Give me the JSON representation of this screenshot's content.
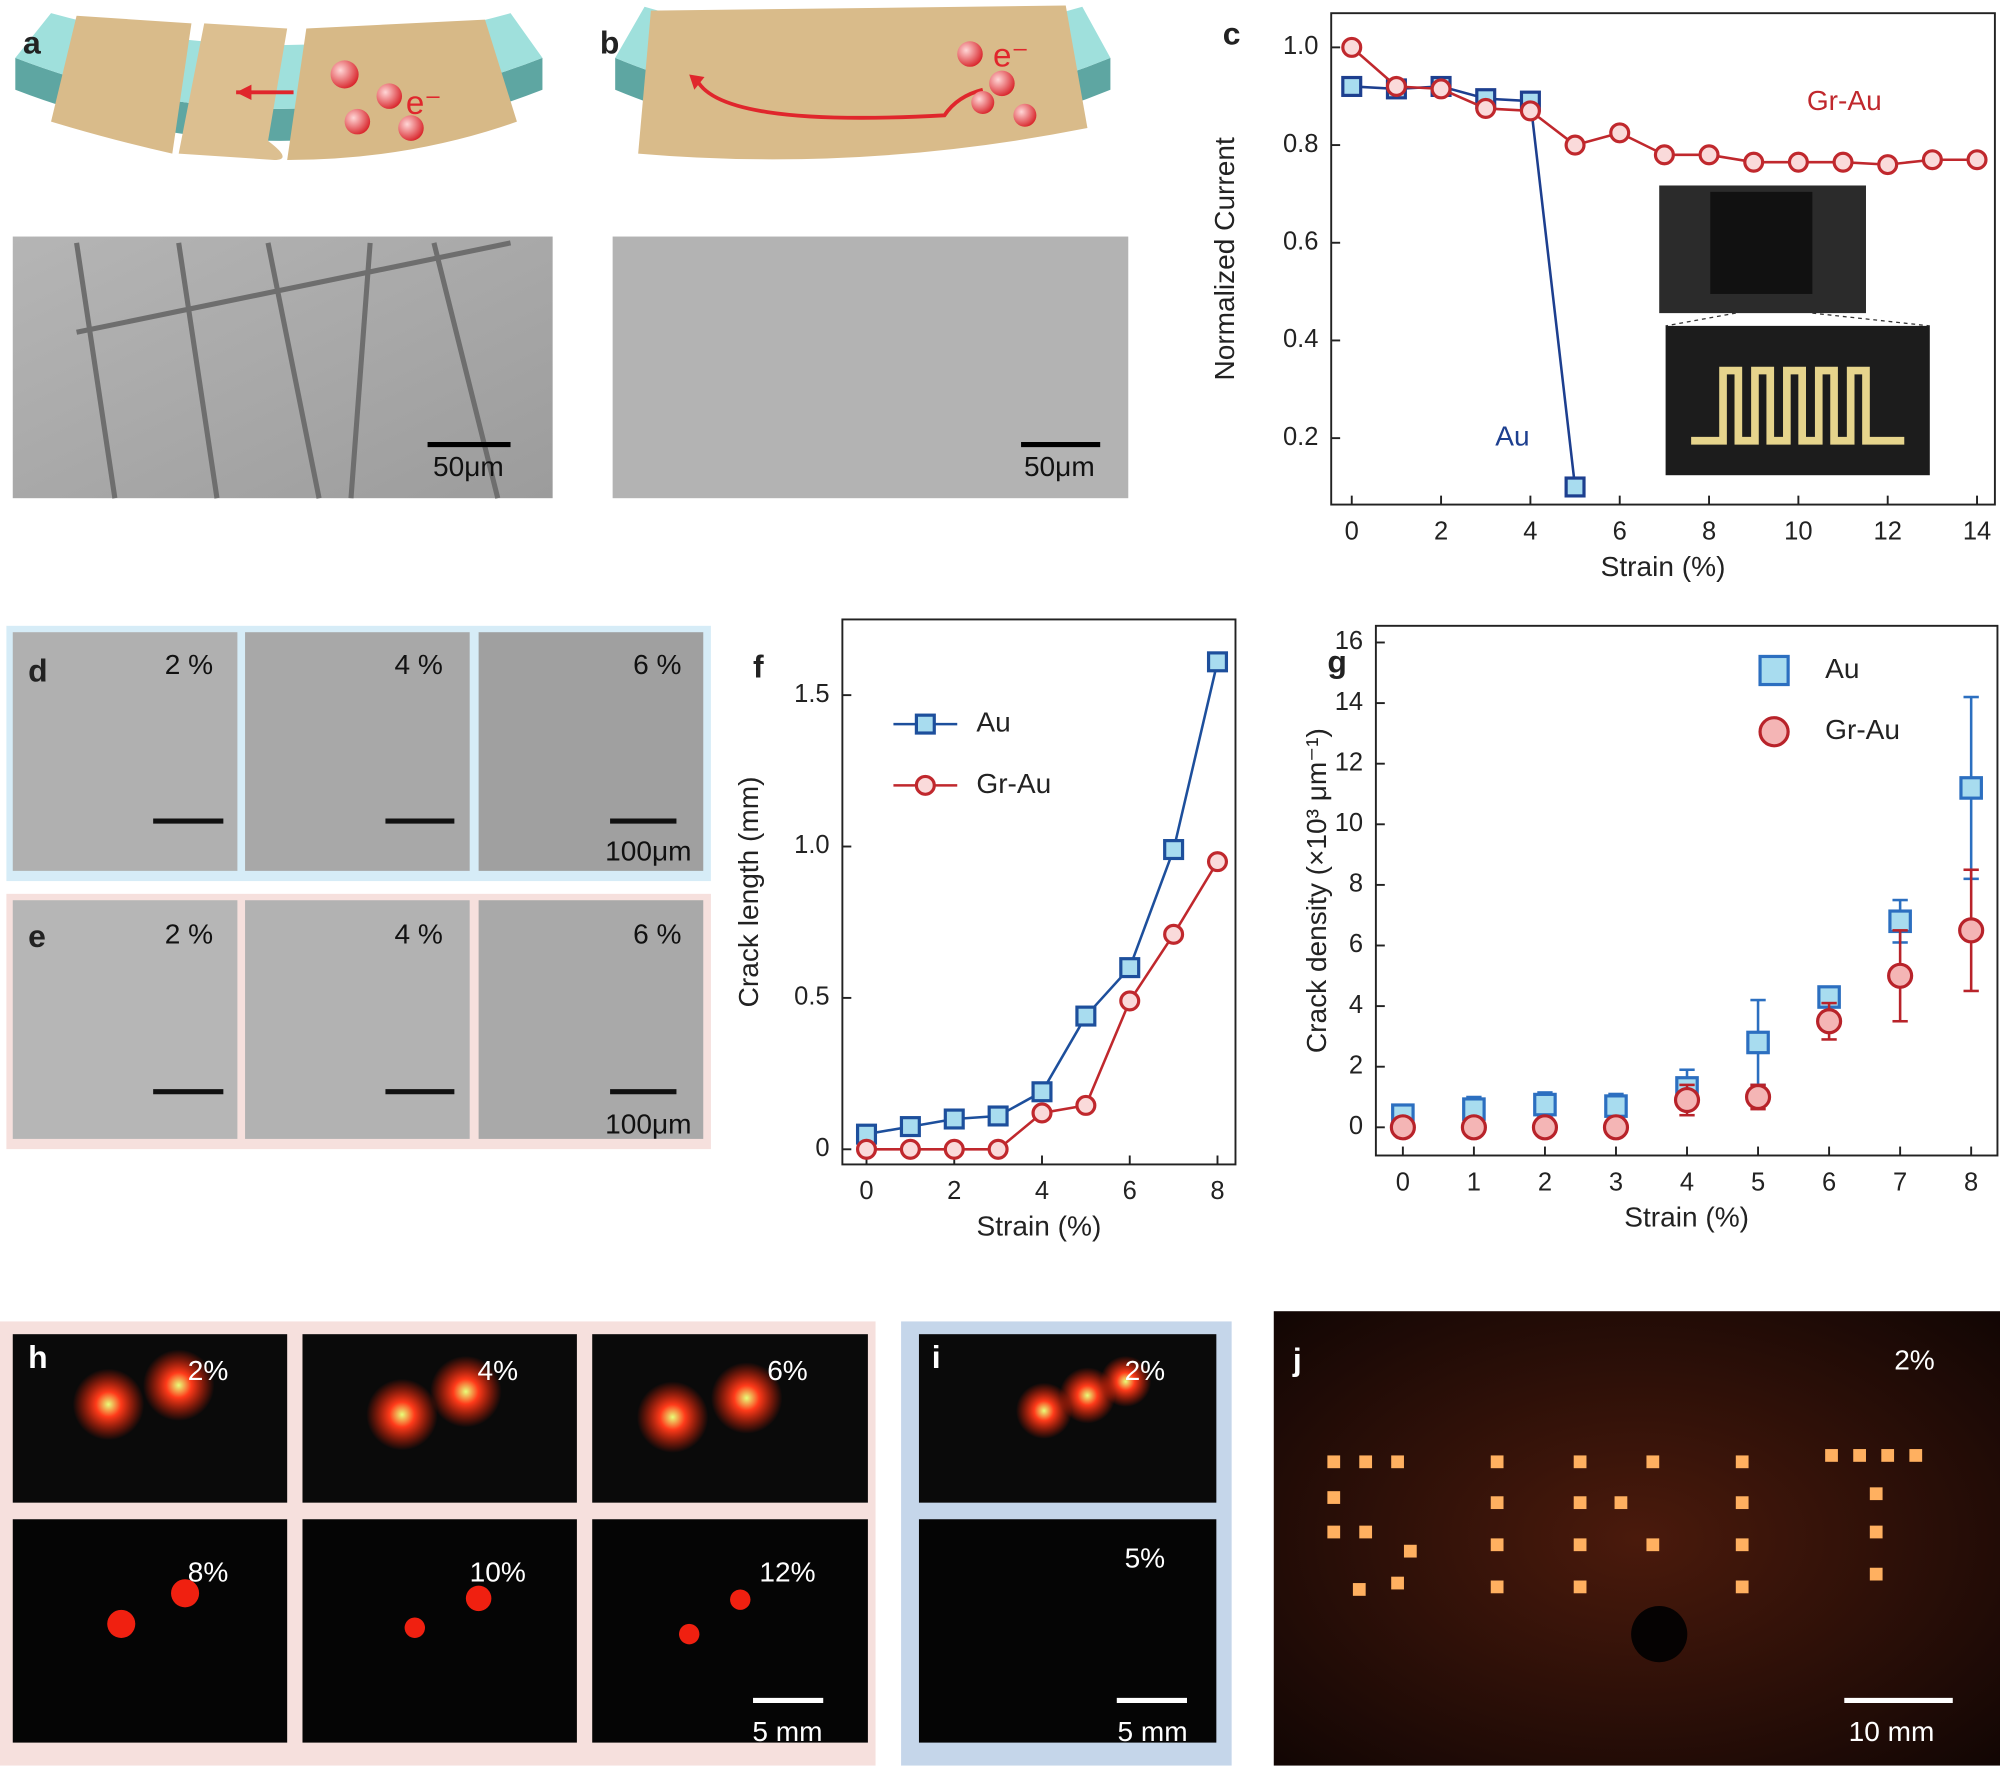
{
  "panel_labels": [
    "a",
    "b",
    "c",
    "d",
    "e",
    "f",
    "g",
    "h",
    "i",
    "j"
  ],
  "electron_labels": [
    "e⁻",
    "e⁻"
  ],
  "scale_bars": [
    "50μm",
    "50μm",
    "100μm",
    "100μm",
    "5 mm",
    "5 mm",
    "10 mm"
  ],
  "strain_labels": {
    "d": [
      "2 %",
      "4 %",
      "6 %"
    ],
    "e": [
      "2 %",
      "4 %",
      "6 %"
    ],
    "h": [
      "2%",
      "4%",
      "6%",
      "8%",
      "10%",
      "12%"
    ],
    "i": [
      "2%",
      "5%"
    ],
    "j": [
      "2%"
    ]
  },
  "chart_data": [
    {
      "type": "line",
      "xlabel": "Strain (%)",
      "ylabel": "Normalized Current",
      "xlim": [
        -0.46,
        14.4
      ],
      "ylim": [
        0.064,
        1.07
      ],
      "xticks": [
        0,
        2,
        4,
        6,
        8,
        10,
        12,
        14
      ],
      "yticks": [
        0.2,
        0.4,
        0.6,
        0.8,
        {
          "value": 1,
          "label": "1.0"
        }
      ],
      "legend": "inline",
      "series": [
        {
          "name": "Au",
          "color": "#1d3f8f",
          "marker": "square",
          "marker_fill": "#a8dcef",
          "x": [
            0,
            1,
            2,
            3,
            4,
            5
          ],
          "values": [
            0.92,
            0.915,
            0.92,
            0.895,
            0.89,
            0.1
          ]
        },
        {
          "name": "Gr-Au",
          "color": "#c0282d",
          "marker": "circle",
          "marker_fill": "#fadada",
          "x": [
            0,
            1,
            2,
            3,
            4,
            5,
            6,
            7,
            8,
            9,
            10,
            11,
            12,
            13,
            14
          ],
          "values": [
            1.0,
            0.92,
            0.915,
            0.875,
            0.87,
            0.8,
            0.825,
            0.78,
            0.78,
            0.765,
            0.765,
            0.765,
            0.76,
            0.77,
            0.77
          ]
        }
      ]
    },
    {
      "type": "line",
      "xlabel": "Strain (%)",
      "ylabel": "Crack length (mm)",
      "xlim": [
        -0.55,
        8.41
      ],
      "ylim": [
        -0.05,
        1.75
      ],
      "xticks": [
        0,
        2,
        4,
        6,
        8
      ],
      "yticks": [
        0,
        0.5,
        {
          "value": 1,
          "label": "1.0"
        },
        1.5
      ],
      "legend": "upper left",
      "series": [
        {
          "name": "Au",
          "color": "#1d4f9c",
          "marker": "square",
          "marker_fill": "#a8dcef",
          "x": [
            0,
            1,
            2,
            3,
            4,
            5,
            6,
            7,
            8
          ],
          "values": [
            0.05,
            0.075,
            0.1,
            0.11,
            0.19,
            0.44,
            0.6,
            0.99,
            1.61
          ]
        },
        {
          "name": "Gr-Au",
          "color": "#c0282d",
          "marker": "circle",
          "marker_fill": "#fadada",
          "x": [
            0,
            1,
            2,
            3,
            4,
            5,
            6,
            7,
            8
          ],
          "values": [
            0,
            0,
            0,
            0,
            0.12,
            0.145,
            0.49,
            0.71,
            0.95
          ]
        }
      ]
    },
    {
      "type": "scatter",
      "xlabel": "Strain (%)",
      "ylabel": "Crack density (×10³ μm⁻¹)",
      "xlim": [
        -0.38,
        8.37
      ],
      "ylim": [
        -0.93,
        16.55
      ],
      "xticks": [
        0,
        1,
        2,
        3,
        4,
        5,
        6,
        7,
        8
      ],
      "yticks": [
        0,
        2,
        4,
        6,
        8,
        10,
        12,
        14,
        16
      ],
      "legend": "upper right",
      "series": [
        {
          "name": "Au",
          "color": "#2c6fc0",
          "marker": "square",
          "marker_fill": "#a8dcef",
          "x": [
            0,
            1,
            2,
            3,
            4,
            5,
            6,
            7,
            8
          ],
          "values": [
            0.4,
            0.6,
            0.75,
            0.7,
            1.3,
            2.8,
            4.3,
            6.8,
            11.2
          ],
          "errors": [
            0.3,
            0.4,
            0.4,
            0.4,
            0.6,
            1.4,
            0.3,
            0.7,
            3.0
          ]
        },
        {
          "name": "Gr-Au",
          "color": "#b8232a",
          "marker": "circle",
          "marker_fill": "#f4b5b5",
          "x": [
            0,
            1,
            2,
            3,
            4,
            5,
            6,
            7,
            8
          ],
          "values": [
            0,
            0,
            0,
            0,
            0.9,
            1.0,
            3.5,
            5.0,
            6.5
          ],
          "errors": [
            0,
            0,
            0,
            0,
            0.5,
            0.4,
            0.6,
            1.5,
            2.0
          ]
        }
      ]
    }
  ]
}
